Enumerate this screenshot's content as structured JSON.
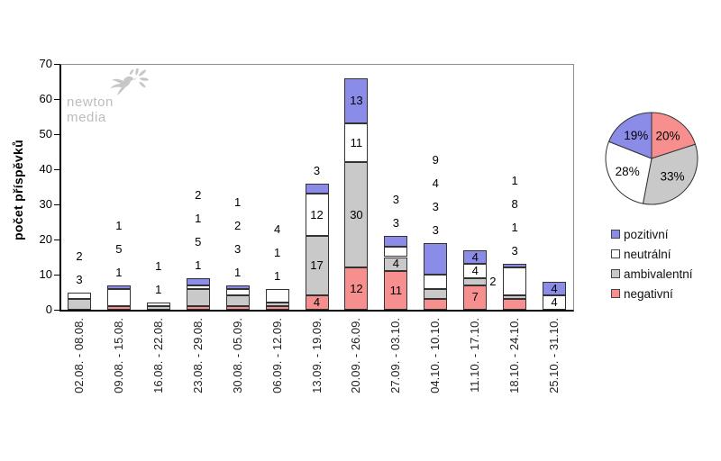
{
  "watermark": {
    "text": "newton media"
  },
  "y_axis": {
    "title": "počet příspěvků",
    "ticks": [
      0,
      10,
      20,
      30,
      40,
      50,
      60,
      70
    ]
  },
  "legend": {
    "position": "right",
    "items": [
      {
        "label": "pozitivní",
        "color": "#8b8be8"
      },
      {
        "label": "neutrální",
        "color": "#ffffff"
      },
      {
        "label": "ambivalentní",
        "color": "#c9c9c9"
      },
      {
        "label": "negativní",
        "color": "#f78f8f"
      }
    ]
  },
  "chart_data": [
    {
      "type": "bar",
      "stacked": true,
      "title": "",
      "xlabel": "",
      "ylabel": "počet příspěvků",
      "ylim": [
        0,
        70
      ],
      "grid": false,
      "categories": [
        "02.08. - 08.08.",
        "09.08. - 15.08.",
        "16.08. - 22.08.",
        "23.08. - 29.08.",
        "30.08. - 05.09.",
        "06.09. - 12.09.",
        "13.09. - 19.09.",
        "20.09. - 26.09.",
        "27.09. - 03.10.",
        "04.10. - 10.10.",
        "11.10. - 17.10.",
        "18.10. - 24.10.",
        "25.10. - 31.10."
      ],
      "series": [
        {
          "name": "pozitivní",
          "color": "#8b8be8",
          "values": [
            0,
            1,
            0,
            2,
            1,
            0,
            3,
            13,
            3,
            9,
            4,
            1,
            4
          ],
          "placements": [
            null,
            "above",
            null,
            "above",
            "above",
            null,
            "above",
            "inside",
            "above",
            "above",
            "inside",
            "above",
            "inside"
          ]
        },
        {
          "name": "neutrální",
          "color": "#ffffff",
          "values": [
            2,
            5,
            1,
            1,
            2,
            4,
            12,
            11,
            3,
            4,
            4,
            8,
            4
          ],
          "placements": [
            "above",
            "above",
            "above",
            "above",
            "above",
            "above",
            "inside",
            "inside",
            "above",
            "above",
            "inside",
            "above",
            "inside"
          ]
        },
        {
          "name": "ambivalentní",
          "color": "#c9c9c9",
          "values": [
            3,
            0,
            1,
            5,
            3,
            1,
            17,
            30,
            4,
            3,
            2,
            1,
            0
          ],
          "placements": [
            "above",
            null,
            "above",
            "above",
            "above",
            "above",
            "inside",
            "inside",
            "inside",
            "above",
            "right",
            "above",
            null
          ]
        },
        {
          "name": "negativní",
          "color": "#f78f8f",
          "values": [
            0,
            1,
            0,
            1,
            1,
            1,
            4,
            12,
            11,
            3,
            7,
            3,
            0
          ],
          "placements": [
            null,
            "above",
            null,
            "above",
            "above",
            "above",
            "inside",
            "inside",
            "inside",
            "above",
            "inside",
            "above",
            null
          ]
        }
      ]
    },
    {
      "type": "pie",
      "start": "top",
      "direction": "clockwise",
      "slices": [
        {
          "name": "negativní",
          "pct": 20,
          "color": "#f78f8f"
        },
        {
          "name": "ambivalentní",
          "pct": 33,
          "color": "#c9c9c9"
        },
        {
          "name": "neutrální",
          "pct": 28,
          "color": "#ffffff"
        },
        {
          "name": "pozitivní",
          "pct": 19,
          "color": "#8b8be8"
        }
      ]
    }
  ]
}
